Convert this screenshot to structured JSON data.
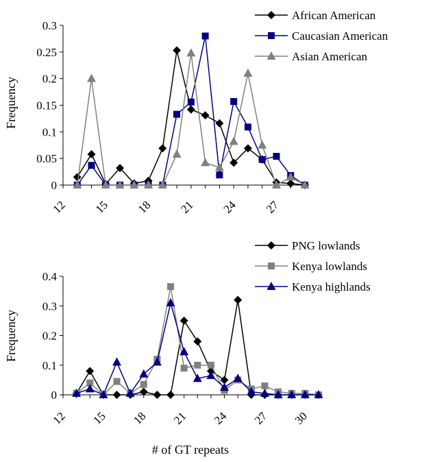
{
  "chart_data": [
    {
      "type": "line",
      "ylabel": "Frequency",
      "xlabel": "",
      "ylim": [
        0,
        0.3
      ],
      "xlim": [
        12,
        29
      ],
      "y_ticks": [
        "0",
        "0.05",
        "0.1",
        "0.15",
        "0.2",
        "0.25",
        "0.3"
      ],
      "x_ticks": [
        "12",
        "15",
        "18",
        "21",
        "24",
        "27"
      ],
      "x": [
        13,
        14,
        15,
        16,
        17,
        18,
        19,
        20,
        21,
        22,
        23,
        24,
        25,
        26,
        27,
        28,
        29
      ],
      "legend_position": "top-right",
      "series": [
        {
          "name": "African American",
          "color": "#000000",
          "marker": "diamond",
          "values": [
            0.015,
            0.058,
            0.002,
            0.032,
            0.003,
            0.008,
            0.069,
            0.253,
            0.142,
            0.131,
            0.116,
            0.042,
            0.069,
            0.048,
            0.005,
            0.003,
            0.0
          ]
        },
        {
          "name": "Caucasian American",
          "color": "#000080",
          "marker": "square",
          "values": [
            0.0,
            0.037,
            0.0,
            0.0,
            0.0,
            0.0,
            0.0,
            0.133,
            0.156,
            0.28,
            0.019,
            0.157,
            0.109,
            0.048,
            0.054,
            0.018,
            0.0
          ]
        },
        {
          "name": "Asian American",
          "color": "#808080",
          "marker": "triangle",
          "values": [
            0.0,
            0.2,
            0.0,
            0.0,
            0.0,
            0.0,
            0.0,
            0.058,
            0.248,
            0.042,
            0.033,
            0.082,
            0.21,
            0.075,
            0.0,
            0.015,
            0.0
          ]
        }
      ]
    },
    {
      "type": "line",
      "ylabel": "Frequency",
      "xlabel": "# of GT repeats",
      "ylim": [
        0,
        0.4
      ],
      "xlim": [
        12,
        31
      ],
      "y_ticks": [
        "0",
        "0.1",
        "0.2",
        "0.3",
        "0.4"
      ],
      "x_ticks": [
        "12",
        "15",
        "18",
        "21",
        "24",
        "27",
        "30"
      ],
      "x": [
        13,
        14,
        15,
        16,
        17,
        18,
        19,
        20,
        21,
        22,
        23,
        24,
        25,
        26,
        27,
        28,
        29,
        30,
        31
      ],
      "legend_position": "top-right",
      "series": [
        {
          "name": "PNG lowlands",
          "color": "#000000",
          "marker": "diamond",
          "values": [
            0.005,
            0.08,
            0.0,
            0.0,
            0.0,
            0.01,
            0.0,
            0.0,
            0.25,
            0.18,
            0.08,
            0.05,
            0.32,
            0.0,
            0.0,
            0.0,
            0.0,
            0.0,
            0.0
          ]
        },
        {
          "name": "Kenya lowlands",
          "color": "#808080",
          "marker": "square",
          "values": [
            0.005,
            0.04,
            0.0,
            0.045,
            0.005,
            0.035,
            0.12,
            0.365,
            0.09,
            0.1,
            0.1,
            0.015,
            0.05,
            0.02,
            0.03,
            0.01,
            0.005,
            0.005,
            0.0
          ]
        },
        {
          "name": "Kenya highlands",
          "color": "#000080",
          "marker": "triangle",
          "values": [
            0.005,
            0.02,
            0.0,
            0.11,
            0.005,
            0.07,
            0.11,
            0.31,
            0.145,
            0.055,
            0.065,
            0.025,
            0.055,
            0.01,
            0.005,
            0.0,
            0.0,
            0.0,
            0.0
          ]
        }
      ]
    }
  ]
}
